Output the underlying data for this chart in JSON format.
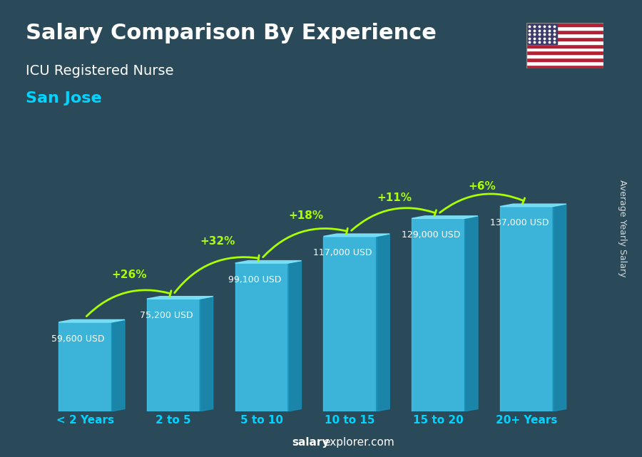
{
  "title": "Salary Comparison By Experience",
  "subtitle": "ICU Registered Nurse",
  "city": "San Jose",
  "categories": [
    "< 2 Years",
    "2 to 5",
    "5 to 10",
    "10 to 15",
    "15 to 20",
    "20+ Years"
  ],
  "values": [
    59600,
    75200,
    99100,
    117000,
    129000,
    137000
  ],
  "value_labels": [
    "59,600 USD",
    "75,200 USD",
    "99,100 USD",
    "117,000 USD",
    "129,000 USD",
    "137,000 USD"
  ],
  "pct_changes": [
    "+26%",
    "+32%",
    "+18%",
    "+11%",
    "+6%"
  ],
  "bar_color_top": "#00d4ff",
  "bar_color_mid": "#00aadd",
  "bar_color_side": "#0077aa",
  "bar_face_color": "#40c8f0",
  "ylabel": "Average Yearly Salary",
  "watermark": "salaryexplorer.com",
  "bg_color": "#1a3a4a",
  "title_color": "#ffffff",
  "subtitle_color": "#ffffff",
  "city_color": "#00d4ff",
  "value_label_color": "#ffffff",
  "pct_color": "#aaff00",
  "xlabel_color": "#00d4ff",
  "bar_width": 0.6
}
